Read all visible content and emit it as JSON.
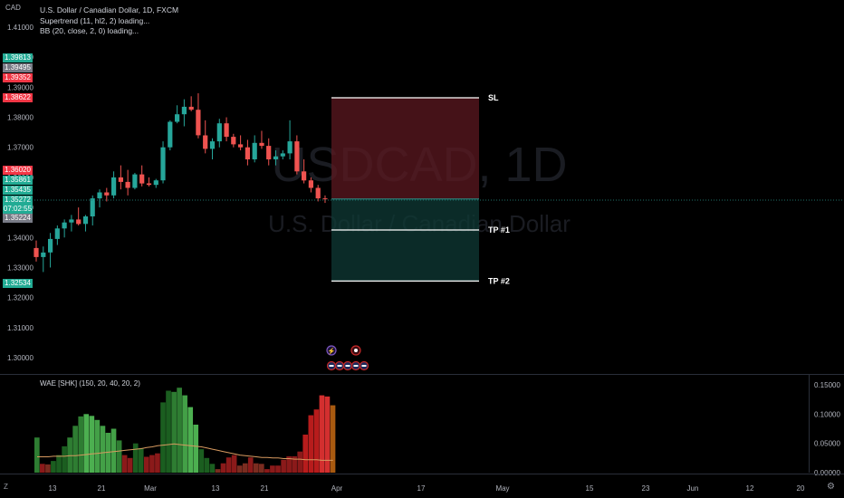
{
  "header": {
    "currency": "CAD",
    "title": "U.S. Dollar / Canadian Dollar, 1D, FXCM",
    "ind1": "Supertrend (11, hl2, 2) loading...",
    "ind2": "BB (20, close, 2, 0) loading..."
  },
  "watermark": {
    "symbol": "USDCAD, 1D",
    "name": "U.S. Dollar / Canadian Dollar"
  },
  "colors": {
    "up": "#26a69a",
    "down": "#ef5350",
    "bg": "#000000",
    "green_ct": "#22ab94",
    "red_ct": "#f23645"
  },
  "price_badges": [
    {
      "label": "1.39813",
      "color": "#22ab94"
    },
    {
      "label": "1.39495",
      "color": "#787b86"
    },
    {
      "label": "1.39352",
      "color": "#f23645"
    },
    {
      "label": "1.38622",
      "color": "#f23645"
    },
    {
      "label": "1.36020",
      "color": "#f23645"
    },
    {
      "label": "1.35861",
      "color": "#22ab94"
    },
    {
      "label": "1.35435",
      "color": "#22ab94"
    },
    {
      "label": "1.35272",
      "color": "#22ab94"
    },
    {
      "label": "07:02:55",
      "color": "#22ab94"
    },
    {
      "label": "1.35224",
      "color": "#787b86"
    },
    {
      "label": "1.32534",
      "color": "#22ab94"
    }
  ],
  "position_tool": {
    "sl_label": "SL",
    "tp1_label": "TP #1",
    "tp2_label": "TP #2",
    "sl": 1.3865,
    "entry": 1.3528,
    "tp1": 1.3425,
    "tp2": 1.3255
  },
  "wae_label": "WAE [SHK] (150, 20, 40, 20, 2)",
  "bottom_left_label": "Z",
  "chart_data": [
    {
      "type": "candlestick",
      "title": "U.S. Dollar / Canadian Dollar, 1D, FXCM",
      "ylim": [
        1.2945,
        1.4172
      ],
      "yticks": [
        "1.41000",
        "1.40000",
        "1.39000",
        "1.38000",
        "1.37000",
        "1.36000",
        "1.35000",
        "1.34000",
        "1.33000",
        "1.32000",
        "1.31000",
        "1.30000"
      ],
      "xticks": [
        "13",
        "21",
        "Mar",
        "13",
        "21",
        "Apr",
        "17",
        "May",
        "15",
        "23",
        "Jun",
        "12",
        "20"
      ],
      "ohlc": [
        [
          1.3365,
          1.339,
          1.332,
          1.3335
        ],
        [
          1.3335,
          1.337,
          1.3285,
          1.335
        ],
        [
          1.335,
          1.3415,
          1.33,
          1.3395
        ],
        [
          1.3395,
          1.344,
          1.3375,
          1.343
        ],
        [
          1.343,
          1.346,
          1.34,
          1.345
        ],
        [
          1.345,
          1.3475,
          1.342,
          1.346
        ],
        [
          1.346,
          1.35,
          1.344,
          1.3445
        ],
        [
          1.3445,
          1.3475,
          1.342,
          1.347
        ],
        [
          1.347,
          1.354,
          1.344,
          1.353
        ],
        [
          1.353,
          1.356,
          1.35,
          1.355
        ],
        [
          1.355,
          1.3565,
          1.352,
          1.354
        ],
        [
          1.354,
          1.362,
          1.353,
          1.36
        ],
        [
          1.36,
          1.364,
          1.356,
          1.3585
        ],
        [
          1.3585,
          1.3625,
          1.354,
          1.3565
        ],
        [
          1.3565,
          1.3615,
          1.356,
          1.361
        ],
        [
          1.361,
          1.364,
          1.357,
          1.358
        ],
        [
          1.358,
          1.36,
          1.357,
          1.3575
        ],
        [
          1.3575,
          1.3595,
          1.3565,
          1.359
        ],
        [
          1.359,
          1.372,
          1.358,
          1.37
        ],
        [
          1.37,
          1.379,
          1.369,
          1.3785
        ],
        [
          1.3785,
          1.384,
          1.378,
          1.381
        ],
        [
          1.381,
          1.386,
          1.377,
          1.3835
        ],
        [
          1.3835,
          1.387,
          1.382,
          1.3825
        ],
        [
          1.3825,
          1.388,
          1.373,
          1.374
        ],
        [
          1.374,
          1.379,
          1.368,
          1.3695
        ],
        [
          1.3695,
          1.373,
          1.366,
          1.372
        ],
        [
          1.372,
          1.3795,
          1.37,
          1.378
        ],
        [
          1.378,
          1.38,
          1.372,
          1.3735
        ],
        [
          1.3735,
          1.3745,
          1.37,
          1.371
        ],
        [
          1.371,
          1.374,
          1.369,
          1.37
        ],
        [
          1.37,
          1.3725,
          1.364,
          1.366
        ],
        [
          1.366,
          1.374,
          1.365,
          1.3715
        ],
        [
          1.3715,
          1.3755,
          1.3695,
          1.3705
        ],
        [
          1.3705,
          1.373,
          1.364,
          1.366
        ],
        [
          1.366,
          1.369,
          1.364,
          1.367
        ],
        [
          1.367,
          1.369,
          1.366,
          1.368
        ],
        [
          1.368,
          1.379,
          1.366,
          1.372
        ],
        [
          1.372,
          1.374,
          1.361,
          1.362
        ],
        [
          1.362,
          1.366,
          1.358,
          1.359
        ],
        [
          1.359,
          1.36,
          1.355,
          1.3565
        ],
        [
          1.3565,
          1.3575,
          1.352,
          1.353
        ],
        [
          1.353,
          1.354,
          1.3515,
          1.3527
        ]
      ]
    },
    {
      "type": "bar",
      "title": "WAE [SHK] (150, 20, 40, 20, 2)",
      "ylim": [
        0,
        0.155
      ],
      "yticks": [
        "0.15000",
        "0.10000",
        "0.05000",
        "0.00000"
      ],
      "values": [
        0.06,
        0.015,
        0.014,
        0.02,
        0.03,
        0.045,
        0.06,
        0.08,
        0.096,
        0.1,
        0.097,
        0.09,
        0.08,
        0.068,
        0.075,
        0.055,
        0.03,
        0.025,
        0.05,
        0.042,
        0.027,
        0.03,
        0.033,
        0.12,
        0.14,
        0.138,
        0.145,
        0.132,
        0.112,
        0.082,
        0.04,
        0.025,
        0.015,
        0.006,
        0.016,
        0.026,
        0.03,
        0.012,
        0.016,
        0.026,
        0.016,
        0.015,
        0.006,
        0.012,
        0.012,
        0.022,
        0.028,
        0.028,
        0.036,
        0.065,
        0.098,
        0.108,
        0.132,
        0.13,
        0.115
      ],
      "colors": [
        "#2e7d32",
        "#8b1a1a",
        "#7a2c20",
        "#1b5e20",
        "#1b5e20",
        "#1b5e20",
        "#2e7d32",
        "#2e7d32",
        "#2e7d32",
        "#4caf50",
        "#4caf50",
        "#43a047",
        "#43a047",
        "#43a047",
        "#43a047",
        "#2e7d32",
        "#8b1a1a",
        "#8b1a1a",
        "#1b5e20",
        "#1b5e20",
        "#8b1a1a",
        "#8b1a1a",
        "#8b1a1a",
        "#1b5e20",
        "#1b5e20",
        "#2e7d32",
        "#2e7d32",
        "#43a047",
        "#4caf50",
        "#4caf50",
        "#1b5e20",
        "#1b5e20",
        "#1b5e20",
        "#7a2c20",
        "#8b1a1a",
        "#8b1a1a",
        "#8b1a1a",
        "#7a2c20",
        "#7a2c20",
        "#8b1a1a",
        "#7a2c20",
        "#7a2c20",
        "#8b1a1a",
        "#8b1a1a",
        "#8b1a1a",
        "#8b1a1a",
        "#8b1a1a",
        "#8b1a1a",
        "#8b1a1a",
        "#b71c1c",
        "#b71c1c",
        "#b71c1c",
        "#d32f2f",
        "#d32f2f",
        "#a85a10"
      ],
      "explosion_line": [
        0.027,
        0.027,
        0.027,
        0.028,
        0.028,
        0.028,
        0.029,
        0.029,
        0.03,
        0.031,
        0.032,
        0.033,
        0.034,
        0.035,
        0.036,
        0.037,
        0.038,
        0.039,
        0.04,
        0.041,
        0.043,
        0.044,
        0.046,
        0.047,
        0.048,
        0.049,
        0.048,
        0.047,
        0.046,
        0.045,
        0.044,
        0.042,
        0.04,
        0.038,
        0.036,
        0.034,
        0.032,
        0.03,
        0.029,
        0.028,
        0.027,
        0.026,
        0.026,
        0.025,
        0.025,
        0.024,
        0.024,
        0.023,
        0.023,
        0.022,
        0.022,
        0.022,
        0.021,
        0.021,
        0.021
      ]
    }
  ]
}
